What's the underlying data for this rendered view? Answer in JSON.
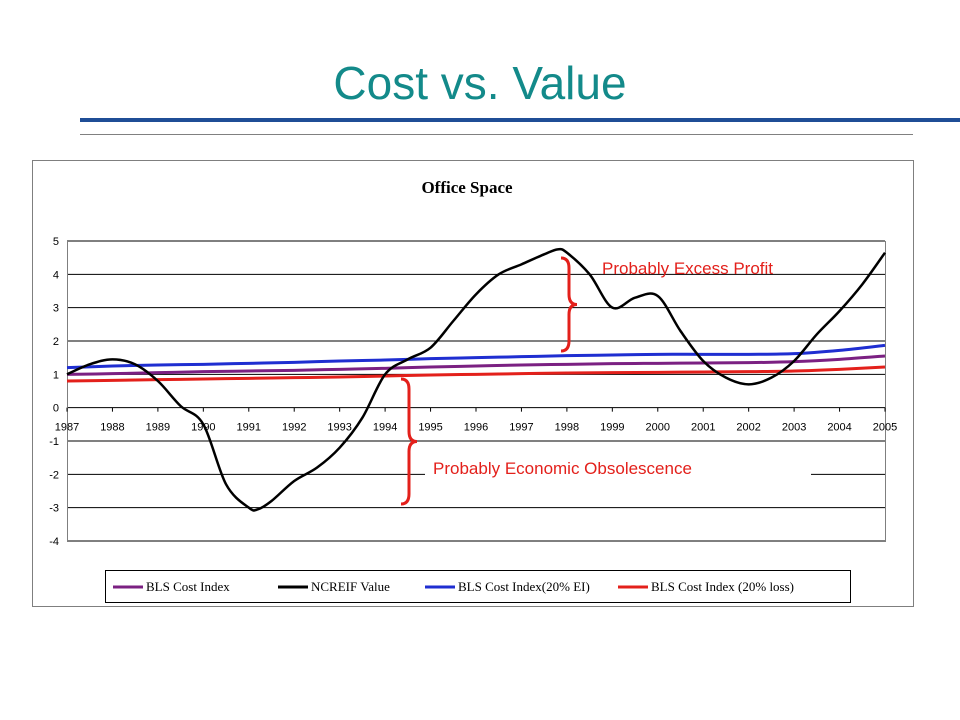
{
  "slide": {
    "title": "Cost vs. Value"
  },
  "chart_data": {
    "type": "line",
    "title": "Office Space",
    "xlabel": "",
    "ylabel": "",
    "xlim": [
      1987,
      2005
    ],
    "ylim": [
      -4,
      5
    ],
    "x_ticks": [
      1987,
      1988,
      1989,
      1990,
      1991,
      1992,
      1993,
      1994,
      1995,
      1996,
      1997,
      1998,
      1999,
      2000,
      2001,
      2002,
      2003,
      2004,
      2005
    ],
    "y_ticks": [
      5,
      4,
      3,
      2,
      1,
      0,
      -1,
      -2,
      -3,
      -4
    ],
    "grid": "horizontal",
    "legend_position": "bottom",
    "series": [
      {
        "name": "BLS Cost Index",
        "color": "#7b2082",
        "x": [
          1987,
          1988,
          1989,
          1990,
          1991,
          1992,
          1993,
          1994,
          1995,
          1996,
          1997,
          1998,
          1999,
          2000,
          2001,
          2002,
          2003,
          2004,
          2005
        ],
        "y": [
          1.0,
          1.02,
          1.05,
          1.08,
          1.1,
          1.12,
          1.15,
          1.18,
          1.22,
          1.25,
          1.28,
          1.3,
          1.32,
          1.33,
          1.34,
          1.35,
          1.38,
          1.45,
          1.55
        ]
      },
      {
        "name": "NCREIF Value",
        "color": "#000000",
        "x": [
          1987,
          1987.5,
          1988,
          1988.5,
          1989,
          1989.5,
          1990,
          1990.5,
          1991,
          1991.2,
          1991.5,
          1992,
          1992.5,
          1993,
          1993.5,
          1994,
          1994.5,
          1995,
          1995.5,
          1996,
          1996.5,
          1997,
          1997.5,
          1997.8,
          1998,
          1998.5,
          1999,
          1999.5,
          2000,
          2000.5,
          2001,
          2001.5,
          2002,
          2002.5,
          2003,
          2003.5,
          2004,
          2004.5,
          2005
        ],
        "y": [
          1.0,
          1.3,
          1.45,
          1.3,
          0.8,
          0.05,
          -0.5,
          -2.3,
          -3.0,
          -3.05,
          -2.8,
          -2.2,
          -1.8,
          -1.2,
          -0.3,
          1.0,
          1.45,
          1.8,
          2.6,
          3.4,
          4.0,
          4.3,
          4.6,
          4.75,
          4.65,
          4.0,
          3.0,
          3.3,
          3.35,
          2.3,
          1.4,
          0.9,
          0.7,
          0.9,
          1.4,
          2.2,
          2.9,
          3.7,
          4.65
        ]
      },
      {
        "name": "BLS Cost Index(20% EI)",
        "color": "#1f2ed1",
        "x": [
          1987,
          1988,
          1989,
          1990,
          1991,
          1992,
          1993,
          1994,
          1995,
          1996,
          1997,
          1998,
          1999,
          2000,
          2001,
          2002,
          2003,
          2004,
          2005
        ],
        "y": [
          1.2,
          1.25,
          1.28,
          1.3,
          1.33,
          1.36,
          1.4,
          1.43,
          1.47,
          1.5,
          1.53,
          1.56,
          1.58,
          1.6,
          1.6,
          1.6,
          1.62,
          1.72,
          1.87
        ]
      },
      {
        "name": "BLS Cost Index (20% loss)",
        "color": "#e3201b",
        "x": [
          1987,
          1988,
          1989,
          1990,
          1991,
          1992,
          1993,
          1994,
          1995,
          1996,
          1997,
          1998,
          1999,
          2000,
          2001,
          2002,
          2003,
          2004,
          2005
        ],
        "y": [
          0.8,
          0.82,
          0.84,
          0.86,
          0.88,
          0.9,
          0.92,
          0.95,
          0.98,
          1.0,
          1.02,
          1.04,
          1.05,
          1.06,
          1.07,
          1.08,
          1.1,
          1.15,
          1.22
        ]
      }
    ],
    "annotations": [
      {
        "text": "Probably Excess Profit",
        "color": "#e3201b"
      },
      {
        "text": "Probably Economic Obsolescence",
        "color": "#e3201b"
      }
    ]
  }
}
